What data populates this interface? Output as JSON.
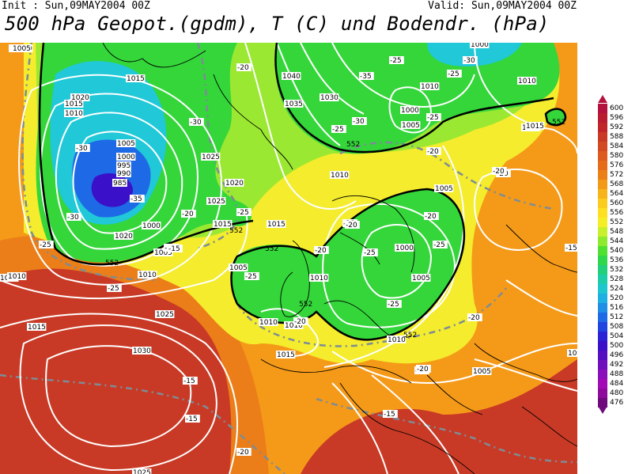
{
  "header": {
    "init": "Init : Sun,09MAY2004 00Z",
    "valid": "Valid: Sun,09MAY2004 00Z",
    "title": "500 hPa Geopot.(gpdm), T (C) und Bodendr. (hPa)"
  },
  "legend": {
    "levels": [
      {
        "value": "600",
        "color": "#b4123e"
      },
      {
        "value": "596",
        "color": "#b81c2e"
      },
      {
        "value": "592",
        "color": "#c0252a"
      },
      {
        "value": "588",
        "color": "#c93a26"
      },
      {
        "value": "584",
        "color": "#d24a22"
      },
      {
        "value": "580",
        "color": "#dc5a1e"
      },
      {
        "value": "576",
        "color": "#e46c1a"
      },
      {
        "value": "572",
        "color": "#ec8018"
      },
      {
        "value": "568",
        "color": "#f29a18"
      },
      {
        "value": "564",
        "color": "#f7b41a"
      },
      {
        "value": "560",
        "color": "#fbcb1e"
      },
      {
        "value": "556",
        "color": "#fde021"
      },
      {
        "value": "552",
        "color": "#f5ee26"
      },
      {
        "value": "548",
        "color": "#c8f02c"
      },
      {
        "value": "544",
        "color": "#8eea2e"
      },
      {
        "value": "540",
        "color": "#50e032"
      },
      {
        "value": "536",
        "color": "#2ed84a"
      },
      {
        "value": "532",
        "color": "#22cf7a"
      },
      {
        "value": "528",
        "color": "#1ecda8"
      },
      {
        "value": "524",
        "color": "#1ec6cf"
      },
      {
        "value": "520",
        "color": "#1eb0e2"
      },
      {
        "value": "516",
        "color": "#1e8ee6"
      },
      {
        "value": "512",
        "color": "#1e6ae6"
      },
      {
        "value": "508",
        "color": "#2044e0"
      },
      {
        "value": "504",
        "color": "#2a22d4"
      },
      {
        "value": "500",
        "color": "#3a10c8"
      },
      {
        "value": "496",
        "color": "#5410c0"
      },
      {
        "value": "492",
        "color": "#7010bc"
      },
      {
        "value": "488",
        "color": "#8a0eba"
      },
      {
        "value": "484",
        "color": "#a20ab6"
      },
      {
        "value": "480",
        "color": "#8e0a9a"
      },
      {
        "value": "476",
        "color": "#6e0a7c"
      }
    ]
  },
  "map": {
    "colors": {
      "green": "#34d63a",
      "lightgreen": "#9be832",
      "yellow": "#f4ec2c",
      "orange": "#f59a18",
      "darkorange": "#e46c1a",
      "red": "#c93a26",
      "cyan": "#20c8d8",
      "blue": "#1e6ae6",
      "violet": "#3a10c8",
      "isobar": "#ffffff",
      "isotherm": "#7d8c96",
      "coast": "#000000"
    },
    "isobar_labels": [
      "1015",
      "1020",
      "1015",
      "1010",
      "1005",
      "1000",
      "995",
      "990",
      "985",
      "1000",
      "1010",
      "1020",
      "1025",
      "1025",
      "1020",
      "1015",
      "1015",
      "1010",
      "1005",
      "1000",
      "1005",
      "1010",
      "1015",
      "1020",
      "1040",
      "1035",
      "1030",
      "1010",
      "1000",
      "1005",
      "1010",
      "1015",
      "1030",
      "1025",
      "1025",
      "1015",
      "1010",
      "1010",
      "1000",
      "1005",
      "1010",
      "1005",
      "1000",
      "1010",
      "1015",
      "1005",
      "1005",
      "1005",
      "1005",
      "1010"
    ],
    "isotherm_labels": [
      "-30",
      "-30",
      "-35",
      "-30",
      "-25",
      "-20",
      "-25",
      "-20",
      "-15",
      "-25",
      "-20",
      "-25",
      "-30",
      "-35",
      "-25",
      "-30",
      "-25",
      "-25",
      "-20",
      "-20",
      "-20",
      "-20",
      "-25",
      "-20",
      "-25",
      "-20",
      "-20",
      "-20",
      "-25",
      "-25",
      "-20",
      "-15",
      "-15",
      "-15",
      "-15",
      "-20",
      "-20",
      "-15"
    ],
    "geopot_labels": [
      "552",
      "552",
      "552",
      "552",
      "552",
      "552",
      "552"
    ]
  }
}
